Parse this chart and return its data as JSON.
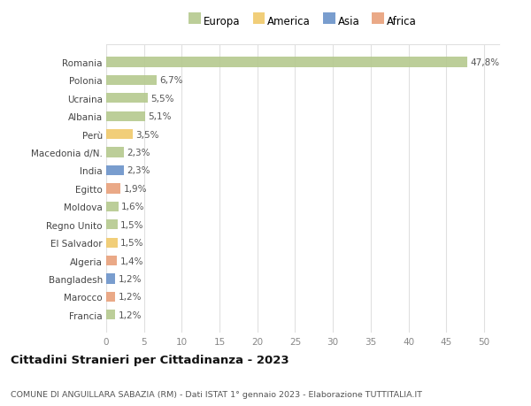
{
  "countries": [
    "Romania",
    "Polonia",
    "Ucraina",
    "Albania",
    "Perù",
    "Macedonia d/N.",
    "India",
    "Egitto",
    "Moldova",
    "Regno Unito",
    "El Salvador",
    "Algeria",
    "Bangladesh",
    "Marocco",
    "Francia"
  ],
  "values": [
    47.8,
    6.7,
    5.5,
    5.1,
    3.5,
    2.3,
    2.3,
    1.9,
    1.6,
    1.5,
    1.5,
    1.4,
    1.2,
    1.2,
    1.2
  ],
  "labels": [
    "47,8%",
    "6,7%",
    "5,5%",
    "5,1%",
    "3,5%",
    "2,3%",
    "2,3%",
    "1,9%",
    "1,6%",
    "1,5%",
    "1,5%",
    "1,4%",
    "1,2%",
    "1,2%",
    "1,2%"
  ],
  "continents": [
    "Europa",
    "Europa",
    "Europa",
    "Europa",
    "America",
    "Europa",
    "Asia",
    "Africa",
    "Europa",
    "Europa",
    "America",
    "Africa",
    "Asia",
    "Africa",
    "Europa"
  ],
  "colors": {
    "Europa": "#b5c98e",
    "America": "#f0c96a",
    "Asia": "#6b92c9",
    "Africa": "#e8a07a"
  },
  "legend_order": [
    "Europa",
    "America",
    "Asia",
    "Africa"
  ],
  "xlim": [
    0,
    52
  ],
  "xticks": [
    0,
    5,
    10,
    15,
    20,
    25,
    30,
    35,
    40,
    45,
    50
  ],
  "title": "Cittadini Stranieri per Cittadinanza - 2023",
  "subtitle": "COMUNE DI ANGUILLARA SABAZIA (RM) - Dati ISTAT 1° gennaio 2023 - Elaborazione TUTTITALIA.IT",
  "bg_color": "#ffffff",
  "grid_color": "#e0e0e0",
  "bar_height": 0.55,
  "label_fontsize": 7.5,
  "ytick_fontsize": 7.5,
  "xtick_fontsize": 7.5,
  "title_fontsize": 9.5,
  "subtitle_fontsize": 6.8,
  "legend_fontsize": 8.5
}
